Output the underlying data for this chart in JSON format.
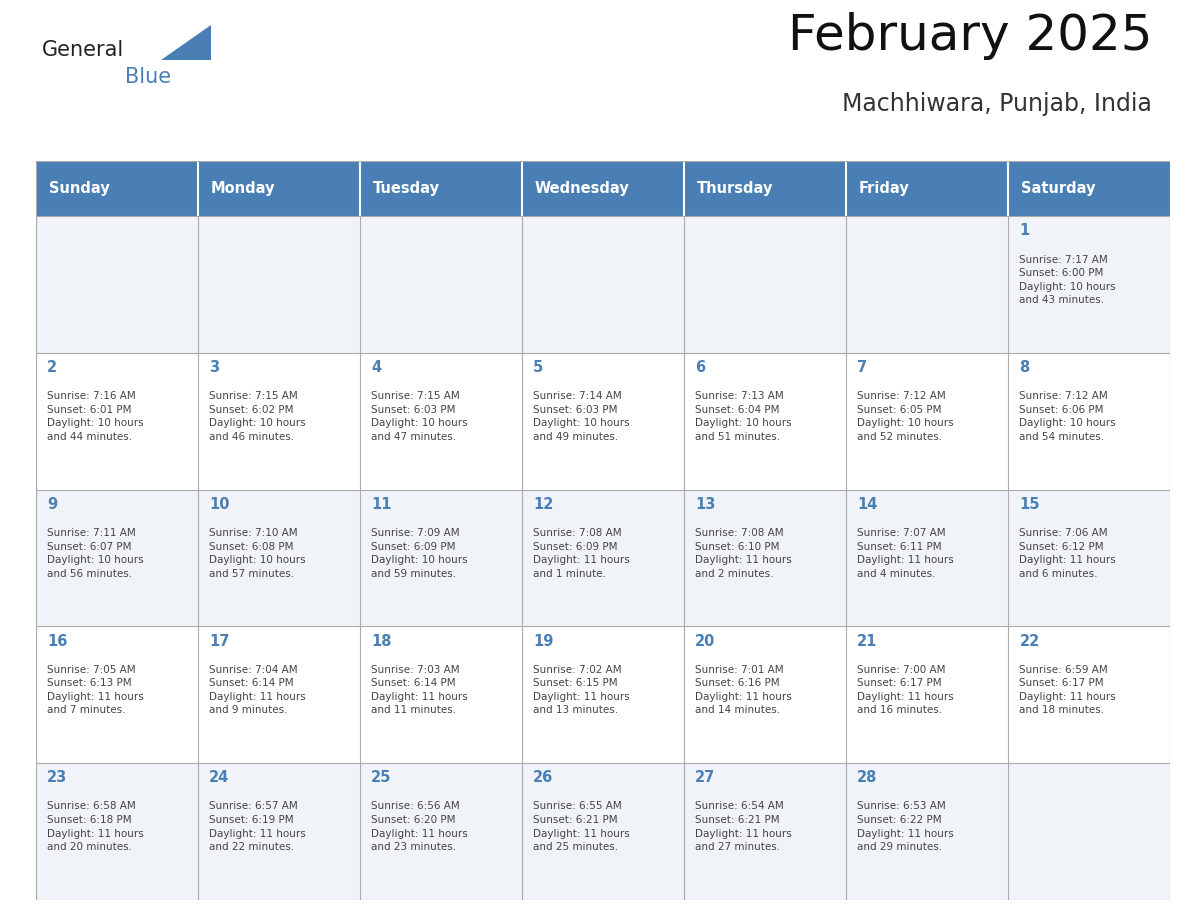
{
  "title": "February 2025",
  "subtitle": "Machhiwara, Punjab, India",
  "header_color": "#4a7fb5",
  "header_text_color": "#ffffff",
  "cell_bg_row0": "#f0f4f8",
  "cell_bg_row1": "#ffffff",
  "cell_bg_row2": "#f0f4f8",
  "cell_bg_row3": "#ffffff",
  "cell_bg_row4": "#f0f4f8",
  "day_text_color": "#4a7fb5",
  "content_text_color": "#444444",
  "grid_color": "#aaaaaa",
  "border_color": "#888888",
  "days_of_week": [
    "Sunday",
    "Monday",
    "Tuesday",
    "Wednesday",
    "Thursday",
    "Friday",
    "Saturday"
  ],
  "logo_general_color": "#222222",
  "logo_blue_color": "#4a7fb5",
  "logo_triangle_color": "#4a7fb5",
  "weeks": [
    [
      {
        "day": null,
        "info": null
      },
      {
        "day": null,
        "info": null
      },
      {
        "day": null,
        "info": null
      },
      {
        "day": null,
        "info": null
      },
      {
        "day": null,
        "info": null
      },
      {
        "day": null,
        "info": null
      },
      {
        "day": 1,
        "info": "Sunrise: 7:17 AM\nSunset: 6:00 PM\nDaylight: 10 hours\nand 43 minutes."
      }
    ],
    [
      {
        "day": 2,
        "info": "Sunrise: 7:16 AM\nSunset: 6:01 PM\nDaylight: 10 hours\nand 44 minutes."
      },
      {
        "day": 3,
        "info": "Sunrise: 7:15 AM\nSunset: 6:02 PM\nDaylight: 10 hours\nand 46 minutes."
      },
      {
        "day": 4,
        "info": "Sunrise: 7:15 AM\nSunset: 6:03 PM\nDaylight: 10 hours\nand 47 minutes."
      },
      {
        "day": 5,
        "info": "Sunrise: 7:14 AM\nSunset: 6:03 PM\nDaylight: 10 hours\nand 49 minutes."
      },
      {
        "day": 6,
        "info": "Sunrise: 7:13 AM\nSunset: 6:04 PM\nDaylight: 10 hours\nand 51 minutes."
      },
      {
        "day": 7,
        "info": "Sunrise: 7:12 AM\nSunset: 6:05 PM\nDaylight: 10 hours\nand 52 minutes."
      },
      {
        "day": 8,
        "info": "Sunrise: 7:12 AM\nSunset: 6:06 PM\nDaylight: 10 hours\nand 54 minutes."
      }
    ],
    [
      {
        "day": 9,
        "info": "Sunrise: 7:11 AM\nSunset: 6:07 PM\nDaylight: 10 hours\nand 56 minutes."
      },
      {
        "day": 10,
        "info": "Sunrise: 7:10 AM\nSunset: 6:08 PM\nDaylight: 10 hours\nand 57 minutes."
      },
      {
        "day": 11,
        "info": "Sunrise: 7:09 AM\nSunset: 6:09 PM\nDaylight: 10 hours\nand 59 minutes."
      },
      {
        "day": 12,
        "info": "Sunrise: 7:08 AM\nSunset: 6:09 PM\nDaylight: 11 hours\nand 1 minute."
      },
      {
        "day": 13,
        "info": "Sunrise: 7:08 AM\nSunset: 6:10 PM\nDaylight: 11 hours\nand 2 minutes."
      },
      {
        "day": 14,
        "info": "Sunrise: 7:07 AM\nSunset: 6:11 PM\nDaylight: 11 hours\nand 4 minutes."
      },
      {
        "day": 15,
        "info": "Sunrise: 7:06 AM\nSunset: 6:12 PM\nDaylight: 11 hours\nand 6 minutes."
      }
    ],
    [
      {
        "day": 16,
        "info": "Sunrise: 7:05 AM\nSunset: 6:13 PM\nDaylight: 11 hours\nand 7 minutes."
      },
      {
        "day": 17,
        "info": "Sunrise: 7:04 AM\nSunset: 6:14 PM\nDaylight: 11 hours\nand 9 minutes."
      },
      {
        "day": 18,
        "info": "Sunrise: 7:03 AM\nSunset: 6:14 PM\nDaylight: 11 hours\nand 11 minutes."
      },
      {
        "day": 19,
        "info": "Sunrise: 7:02 AM\nSunset: 6:15 PM\nDaylight: 11 hours\nand 13 minutes."
      },
      {
        "day": 20,
        "info": "Sunrise: 7:01 AM\nSunset: 6:16 PM\nDaylight: 11 hours\nand 14 minutes."
      },
      {
        "day": 21,
        "info": "Sunrise: 7:00 AM\nSunset: 6:17 PM\nDaylight: 11 hours\nand 16 minutes."
      },
      {
        "day": 22,
        "info": "Sunrise: 6:59 AM\nSunset: 6:17 PM\nDaylight: 11 hours\nand 18 minutes."
      }
    ],
    [
      {
        "day": 23,
        "info": "Sunrise: 6:58 AM\nSunset: 6:18 PM\nDaylight: 11 hours\nand 20 minutes."
      },
      {
        "day": 24,
        "info": "Sunrise: 6:57 AM\nSunset: 6:19 PM\nDaylight: 11 hours\nand 22 minutes."
      },
      {
        "day": 25,
        "info": "Sunrise: 6:56 AM\nSunset: 6:20 PM\nDaylight: 11 hours\nand 23 minutes."
      },
      {
        "day": 26,
        "info": "Sunrise: 6:55 AM\nSunset: 6:21 PM\nDaylight: 11 hours\nand 25 minutes."
      },
      {
        "day": 27,
        "info": "Sunrise: 6:54 AM\nSunset: 6:21 PM\nDaylight: 11 hours\nand 27 minutes."
      },
      {
        "day": 28,
        "info": "Sunrise: 6:53 AM\nSunset: 6:22 PM\nDaylight: 11 hours\nand 29 minutes."
      },
      {
        "day": null,
        "info": null
      }
    ]
  ]
}
